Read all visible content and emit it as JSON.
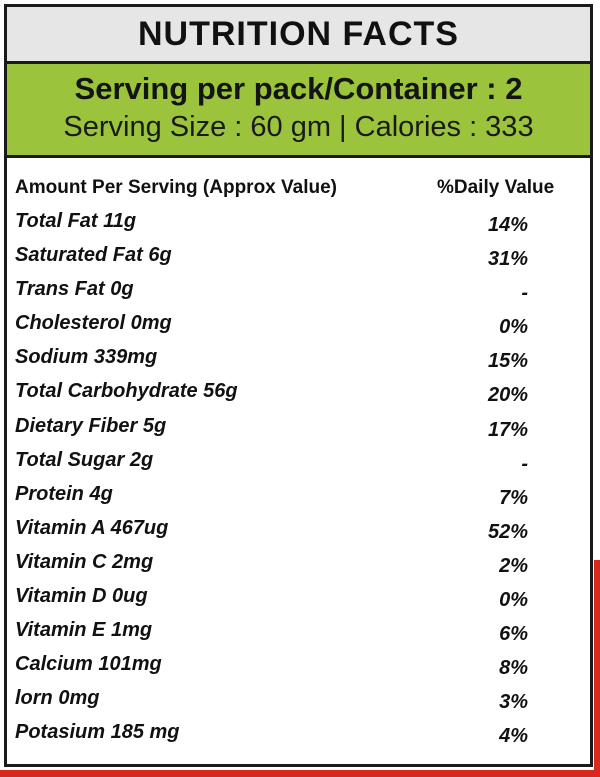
{
  "title": "NUTRITION FACTS",
  "serving": {
    "per_pack": "Serving per pack/Container : 2",
    "size_calories": "Serving Size : 60 gm | Calories : 333"
  },
  "table": {
    "header_left": "Amount Per Serving (Approx Value)",
    "header_right": "%Daily Value",
    "rows": [
      {
        "name": "Total Fat 11g",
        "dv": "14%"
      },
      {
        "name": "Saturated Fat 6g",
        "dv": "31%"
      },
      {
        "name": "Trans Fat 0g",
        "dv": "-"
      },
      {
        "name": "Cholesterol 0mg",
        "dv": "0%"
      },
      {
        "name": "Sodium 339mg",
        "dv": "15%"
      },
      {
        "name": "Total Carbohydrate 56g",
        "dv": "20%"
      },
      {
        "name": "Dietary Fiber 5g",
        "dv": "17%"
      },
      {
        "name": "Total Sugar 2g",
        "dv": "-"
      },
      {
        "name": "Protein 4g",
        "dv": "7%"
      },
      {
        "name": "Vitamin A 467ug",
        "dv": "52%"
      },
      {
        "name": "Vitamin C 2mg",
        "dv": "2%"
      },
      {
        "name": "Vitamin D 0ug",
        "dv": "0%"
      },
      {
        "name": "Vitamin E 1mg",
        "dv": "6%"
      },
      {
        "name": "Calcium 101mg",
        "dv": "8%"
      },
      {
        "name": "lorn 0mg",
        "dv": "3%"
      },
      {
        "name": "Potasium 185 mg",
        "dv": "4%"
      }
    ]
  },
  "colors": {
    "title_bg": "#e6e6e6",
    "serving_bg": "#9bc43c",
    "border": "#1a1a1a",
    "edge_red": "#d72a1f"
  }
}
